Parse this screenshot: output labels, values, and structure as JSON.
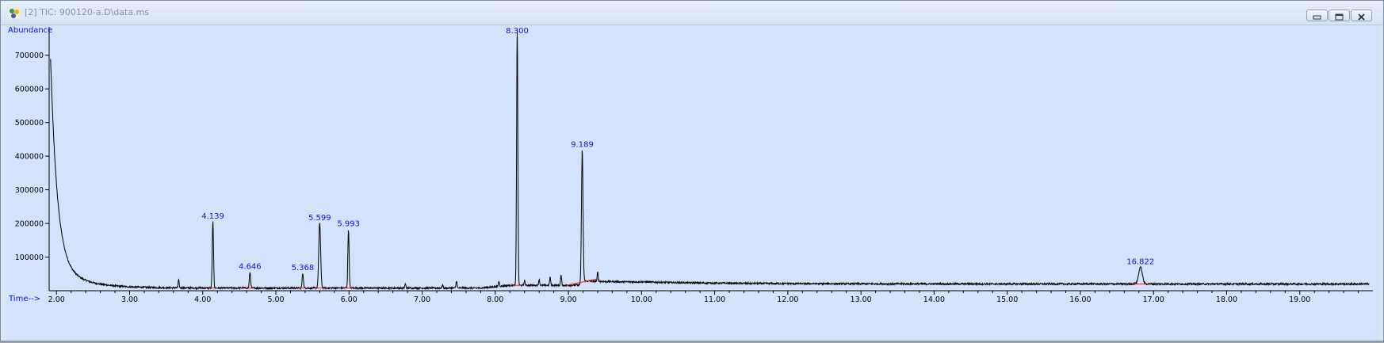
{
  "window": {
    "title": "[2] TIC: 900120-a.D\\data.ms"
  },
  "colors": {
    "plot_background": "#d4e3fb",
    "trace": "#000000",
    "peak_label": "#1010e0",
    "baseline_marker": "#e02020"
  },
  "chart_data": {
    "type": "line",
    "title": "",
    "xlabel": "Time-->",
    "ylabel": "Abundance",
    "xlim": [
      1.9,
      20.0
    ],
    "ylim": [
      0,
      770000
    ],
    "x_ticks": [
      "2.00",
      "3.00",
      "4.00",
      "5.00",
      "6.00",
      "7.00",
      "8.00",
      "9.00",
      "10.00",
      "11.00",
      "12.00",
      "13.00",
      "14.00",
      "15.00",
      "16.00",
      "17.00",
      "18.00",
      "19.00"
    ],
    "y_ticks": [
      "100000",
      "200000",
      "300000",
      "400000",
      "500000",
      "600000",
      "700000"
    ],
    "grid": false,
    "peaks": [
      {
        "label": "4.139",
        "x": 4.139,
        "y": 205000
      },
      {
        "label": "4.646",
        "x": 4.646,
        "y": 55000
      },
      {
        "label": "5.368",
        "x": 5.368,
        "y": 52000
      },
      {
        "label": "5.599",
        "x": 5.599,
        "y": 200000
      },
      {
        "label": "5.993",
        "x": 5.993,
        "y": 182000
      },
      {
        "label": "8.300",
        "x": 8.3,
        "y": 775000
      },
      {
        "label": "9.189",
        "x": 9.189,
        "y": 418000
      },
      {
        "label": "16.822",
        "x": 16.822,
        "y": 70000
      }
    ],
    "minor_peaks": [
      {
        "x": 3.67,
        "y": 32000
      },
      {
        "x": 6.77,
        "y": 20000
      },
      {
        "x": 7.28,
        "y": 17000
      },
      {
        "x": 7.47,
        "y": 30000
      },
      {
        "x": 8.05,
        "y": 28000
      },
      {
        "x": 8.4,
        "y": 30000
      },
      {
        "x": 8.6,
        "y": 34000
      },
      {
        "x": 8.75,
        "y": 40000
      },
      {
        "x": 8.9,
        "y": 45000
      },
      {
        "x": 9.4,
        "y": 55000
      }
    ]
  }
}
